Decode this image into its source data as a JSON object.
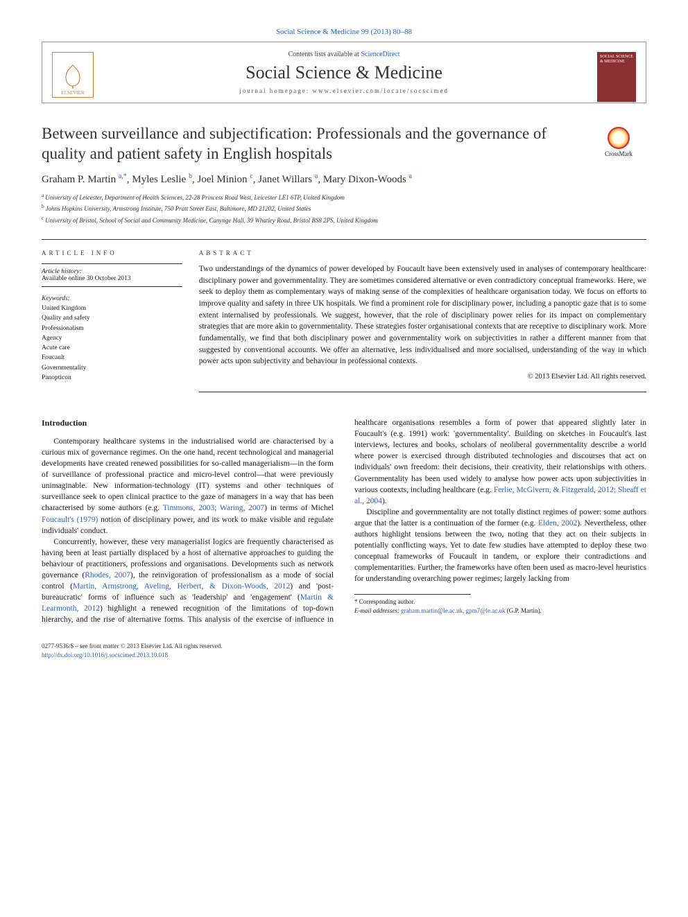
{
  "citation": "Social Science & Medicine 99 (2013) 80–88",
  "header": {
    "contents_prefix": "Contents lists available at ",
    "contents_link": "ScienceDirect",
    "journal_name": "Social Science & Medicine",
    "homepage_prefix": "journal homepage: ",
    "homepage_url": "www.elsevier.com/locate/socscimed",
    "elsevier_label": "ELSEVIER",
    "cover_text": "SOCIAL SCIENCE & MEDICINE"
  },
  "article": {
    "title": "Between surveillance and subjectification: Professionals and the governance of quality and patient safety in English hospitals",
    "crossmark_label": "CrossMark",
    "authors_html": "Graham P. Martin|a,*|, Myles Leslie|b|, Joel Minion|c|, Janet Willars|a|, Mary Dixon-Woods|a|",
    "authors": [
      {
        "name": "Graham P. Martin",
        "sup": "a,*"
      },
      {
        "name": "Myles Leslie",
        "sup": "b"
      },
      {
        "name": "Joel Minion",
        "sup": "c"
      },
      {
        "name": "Janet Willars",
        "sup": "a"
      },
      {
        "name": "Mary Dixon-Woods",
        "sup": "a"
      }
    ],
    "affiliations": [
      {
        "sup": "a",
        "text": "University of Leicester, Department of Health Sciences, 22-28 Princess Road West, Leicester LE1 6TP, United Kingdom"
      },
      {
        "sup": "b",
        "text": "Johns Hopkins University, Armstrong Institute, 750 Pratt Street East, Baltimore, MD 21202, United States"
      },
      {
        "sup": "c",
        "text": "University of Bristol, School of Social and Community Medicine, Canynge Hall, 39 Whatley Road, Bristol BS8 2PS, United Kingdom"
      }
    ]
  },
  "meta": {
    "info_label": "ARTICLE INFO",
    "abstract_label": "ABSTRACT",
    "history_label": "Article history:",
    "history_text": "Available online 30 October 2013",
    "keywords_label": "Keywords:",
    "keywords": [
      "United Kingdom",
      "Quality and safety",
      "Professionalism",
      "Agency",
      "Acute care",
      "Foucault",
      "Governmentality",
      "Panopticon"
    ],
    "abstract": "Two understandings of the dynamics of power developed by Foucault have been extensively used in analyses of contemporary healthcare: disciplinary power and governmentality. They are sometimes considered alternative or even contradictory conceptual frameworks. Here, we seek to deploy them as complementary ways of making sense of the complexities of healthcare organisation today. We focus on efforts to improve quality and safety in three UK hospitals. We find a prominent role for disciplinary power, including a panoptic gaze that is to some extent internalised by professionals. We suggest, however, that the role of disciplinary power relies for its impact on complementary strategies that are more akin to governmentality. These strategies foster organisational contexts that are receptive to disciplinary work. More fundamentally, we find that both disciplinary power and governmentality work on subjectivities in rather a different manner from that suggested by conventional accounts. We offer an alternative, less individualised and more socialised, understanding of the way in which power acts upon subjectivity and behaviour in professional contexts.",
    "copyright": "© 2013 Elsevier Ltd. All rights reserved."
  },
  "body": {
    "intro_heading": "Introduction",
    "p1_a": "Contemporary healthcare systems in the industrialised world are characterised by a curious mix of governance regimes. On the one hand, recent technological and managerial developments have created renewed possibilities for so-called managerialism—in the form of surveillance of professional practice and micro-level control—that were previously unimaginable. New information-technology (IT) systems and other techniques of surveillance seek to open clinical practice to the gaze of managers in a way that has been characterised by some authors (e.g. ",
    "p1_cite1": "Timmons, 2003; Waring, 2007",
    "p1_b": ") in terms of Michel ",
    "p1_cite2": "Foucault's (1979)",
    "p1_c": " notion of disciplinary power, and its work to make visible and regulate individuals' conduct.",
    "p2_a": "Concurrently, however, these very managerialist logics are frequently characterised as having been at least partially displaced by a host of alternative approaches to guiding the behaviour of practitioners, professions and organisations. Developments such as network governance (",
    "p2_cite1": "Rhodes, 2007",
    "p2_b": "), the reinvigoration of professionalism as a mode of social control (",
    "p2_cite2": "Martin, Armstrong, Aveling, Herbert, & Dixon-Woods, 2012",
    "p2_c": ") and 'post-bureaucratic' forms of influence such as 'leadership' and 'engagement' (",
    "p2_cite3": "Martin & Learmonth, 2012",
    "p2_d": ") highlight a renewed recognition of the limitations of top-down hierarchy, and the rise of alternative forms. This analysis of the exercise of influence in healthcare organisations resembles a form of power that appeared slightly later in Foucault's (e.g. 1991) work: 'governmentality'. Building on sketches in Foucault's last interviews, lectures and books, scholars of neoliberal governmentality describe a world where power is exercised through distributed technologies and discourses that act on individuals' own freedom: their decisions, their creativity, their relationships with others. Governmentality has been used widely to analyse how power acts upon subjectivities in various contexts, including healthcare (e.g. ",
    "p2_cite4": "Ferlie, McGivern, & Fitzgerald, 2012; Sheaff et al., 2004",
    "p2_e": ").",
    "p3_a": "Discipline and governmentality are not totally distinct regimes of power: some authors argue that the latter is a continuation of the former (e.g. ",
    "p3_cite1": "Elden, 2002",
    "p3_b": "). Nevertheless, other authors highlight tensions between the two, noting that they act on their subjects in potentially conflicting ways. Yet to date few studies have attempted to deploy these two conceptual frameworks of Foucault in tandem, or explore their contradictions and complementarities. Further, the frameworks have often been used as macro-level heuristics for understanding overarching power regimes; largely lacking from"
  },
  "footnotes": {
    "corr_label": "* Corresponding author.",
    "email_label": "E-mail addresses:",
    "emails": "graham.martin@le.ac.uk, gpm7@le.ac.uk",
    "email_suffix": "(G.P. Martin)."
  },
  "bottom": {
    "issn_line": "0277-9536/$ – see front matter © 2013 Elsevier Ltd. All rights reserved.",
    "doi": "http://dx.doi.org/10.1016/j.socscimed.2013.10.018"
  },
  "colors": {
    "link": "#2962c4",
    "elsevier_orange": "#e08030",
    "cover_red": "#8b3030",
    "text": "#1a1a1a",
    "rule": "#333"
  }
}
